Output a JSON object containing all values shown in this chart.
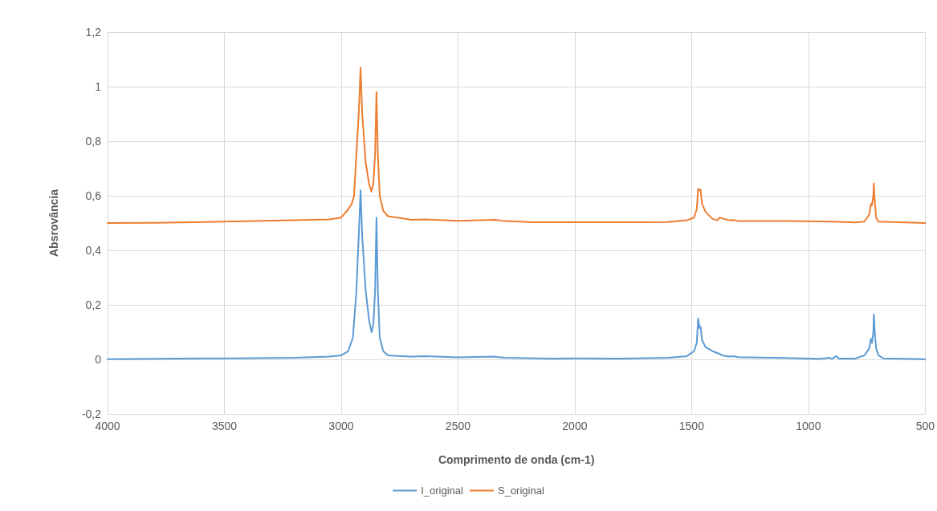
{
  "chart_data": {
    "type": "line",
    "xlabel": "Comprimento de onda (cm-1)",
    "ylabel": "Absrovância",
    "xlim": [
      4000,
      500
    ],
    "xticks": [
      4000,
      3500,
      3000,
      2500,
      2000,
      1500,
      1000,
      500
    ],
    "ylim": [
      -0.2,
      1.2
    ],
    "yticks": [
      {
        "value": -0.2,
        "label": "-0,2"
      },
      0,
      {
        "value": 0.2,
        "label": "0,2"
      },
      {
        "value": 0.4,
        "label": "0,4"
      },
      {
        "value": 0.6,
        "label": "0,6"
      },
      {
        "value": 0.8,
        "label": "0,8"
      },
      1,
      {
        "value": 1.2,
        "label": "1,2"
      }
    ],
    "grid": true,
    "legend": "bottom",
    "marker": "none",
    "line_style": "solid",
    "series": [
      {
        "name": "I_original",
        "color": "#5b9bd5",
        "x": [
          4000,
          3800,
          3500,
          3200,
          3050,
          3000,
          2970,
          2950,
          2935,
          2925,
          2917,
          2910,
          2895,
          2880,
          2870,
          2862,
          2855,
          2849,
          2843,
          2835,
          2820,
          2800,
          2700,
          2640,
          2500,
          2350,
          2300,
          2100,
          1980,
          1800,
          1600,
          1520,
          1490,
          1478,
          1472,
          1466,
          1462,
          1455,
          1440,
          1410,
          1380,
          1370,
          1340,
          1320,
          1300,
          1100,
          950,
          910,
          900,
          880,
          870,
          800,
          760,
          740,
          732,
          728,
          722,
          720,
          716,
          710,
          700,
          680,
          500
        ],
        "values": [
          0.001,
          0.002,
          0.004,
          0.006,
          0.01,
          0.015,
          0.03,
          0.08,
          0.25,
          0.45,
          0.62,
          0.45,
          0.25,
          0.14,
          0.1,
          0.13,
          0.25,
          0.52,
          0.25,
          0.08,
          0.03,
          0.015,
          0.01,
          0.012,
          0.007,
          0.01,
          0.006,
          0.003,
          0.004,
          0.003,
          0.006,
          0.012,
          0.03,
          0.06,
          0.15,
          0.115,
          0.12,
          0.07,
          0.045,
          0.03,
          0.02,
          0.015,
          0.01,
          0.012,
          0.008,
          0.005,
          0.002,
          0.006,
          0.002,
          0.012,
          0.003,
          0.003,
          0.015,
          0.04,
          0.075,
          0.06,
          0.1,
          0.165,
          0.1,
          0.04,
          0.015,
          0.004,
          0.001
        ]
      },
      {
        "name": "S_original",
        "color": "#ed7d31",
        "x": [
          4000,
          3800,
          3500,
          3200,
          3050,
          3000,
          2970,
          2955,
          2945,
          2935,
          2925,
          2917,
          2910,
          2895,
          2880,
          2870,
          2862,
          2855,
          2849,
          2843,
          2835,
          2820,
          2800,
          2700,
          2640,
          2500,
          2340,
          2300,
          2180,
          2000,
          1800,
          1600,
          1520,
          1490,
          1478,
          1472,
          1466,
          1462,
          1455,
          1440,
          1410,
          1390,
          1380,
          1360,
          1340,
          1320,
          1300,
          1100,
          900,
          800,
          760,
          740,
          732,
          728,
          722,
          720,
          716,
          710,
          700,
          500
        ],
        "values": [
          0.5,
          0.501,
          0.505,
          0.51,
          0.513,
          0.52,
          0.55,
          0.57,
          0.6,
          0.75,
          0.9,
          1.07,
          0.9,
          0.72,
          0.64,
          0.615,
          0.65,
          0.75,
          0.98,
          0.75,
          0.6,
          0.545,
          0.525,
          0.512,
          0.513,
          0.508,
          0.512,
          0.507,
          0.503,
          0.503,
          0.503,
          0.504,
          0.51,
          0.52,
          0.55,
          0.625,
          0.62,
          0.623,
          0.57,
          0.54,
          0.515,
          0.51,
          0.52,
          0.515,
          0.51,
          0.511,
          0.507,
          0.507,
          0.505,
          0.502,
          0.505,
          0.53,
          0.57,
          0.565,
          0.6,
          0.645,
          0.58,
          0.52,
          0.505,
          0.5
        ]
      }
    ]
  }
}
